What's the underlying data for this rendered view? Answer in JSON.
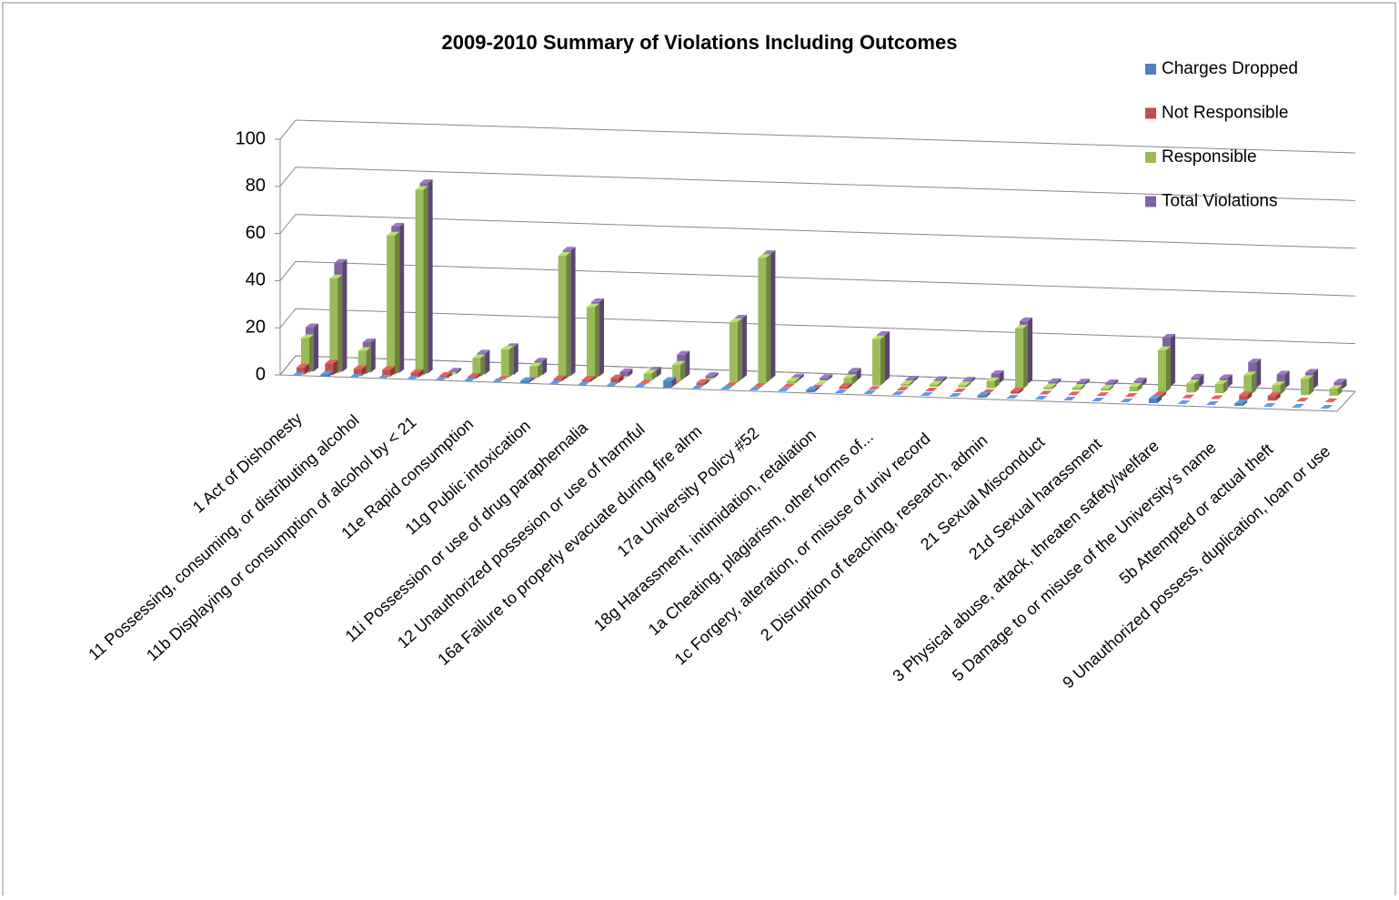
{
  "chart_data": {
    "type": "bar3d",
    "title": "2009-2010 Summary of Violations Including Outcomes",
    "categories": [
      "1  Act of Dishonesty",
      null,
      "11  Possessing, consuming, or distributing alcohol",
      null,
      "11b  Displaying or consumption of alcohol by < 21",
      null,
      "11e  Rapid consumption",
      null,
      "11g  Public intoxication",
      null,
      "11i  Possession or use of drug paraphernalia",
      null,
      "12  Unauthorized possesion or use of harmful",
      null,
      "16a  Failure to properly evacuate during fire alrm",
      null,
      "17a  University Policy #52",
      null,
      "18g  Harassment, intimidation, retaliation",
      null,
      "1a  Cheating, plagiarism, other forms of...",
      null,
      "1c  Forgery, alteration, or misuse of univ record",
      null,
      "2  Disruption of teaching, research, admin",
      null,
      "21  Sexual Misconduct",
      null,
      "21d  Sexual harassment",
      null,
      "3  Physical abuse, attack, threaten safety/welfare",
      null,
      "5  Damage to or misuse of the University's name",
      null,
      "5b  Attempted or actual theft",
      null,
      "9  Unauthorized possess, duplication, loan or use"
    ],
    "series": [
      {
        "name": "Charges Dropped",
        "color": "#4f81bd",
        "values": [
          0,
          1,
          0,
          0,
          0,
          0,
          0,
          0,
          1,
          0,
          0,
          0,
          0,
          3,
          0,
          0,
          0,
          0,
          1,
          0,
          0,
          0,
          0,
          0,
          1,
          0,
          0,
          0,
          0,
          0,
          2,
          0,
          0,
          1,
          0,
          0,
          0
        ]
      },
      {
        "name": "Not Responsible",
        "color": "#c0504d",
        "values": [
          3,
          5,
          3,
          3,
          2,
          1,
          1,
          0,
          0,
          1,
          1,
          2,
          0,
          0,
          1,
          0,
          0,
          0,
          0,
          1,
          0,
          0,
          0,
          0,
          0,
          1,
          0,
          0,
          0,
          0,
          1,
          0,
          0,
          2,
          2,
          0,
          0
        ]
      },
      {
        "name": "Responsible",
        "color": "#9bbb59",
        "values": [
          15,
          41,
          10,
          60,
          80,
          0,
          8,
          12,
          5,
          53,
          31,
          0,
          3,
          7,
          0,
          26,
          54,
          1,
          0,
          3,
          20,
          1,
          1,
          1,
          3,
          26,
          1,
          1,
          1,
          2,
          18,
          4,
          4,
          8,
          4,
          7,
          3
        ]
      },
      {
        "name": "Total Violations",
        "color": "#8064a2",
        "values": [
          19,
          47,
          13,
          63,
          82,
          1,
          9,
          12,
          6,
          54,
          32,
          2,
          3,
          10,
          1,
          26,
          54,
          1,
          1,
          4,
          20,
          1,
          1,
          1,
          4,
          27,
          1,
          1,
          1,
          2,
          21,
          4,
          4,
          11,
          6,
          7,
          3
        ]
      }
    ],
    "ylim": [
      0,
      100
    ],
    "yticks": [
      0,
      20,
      40,
      60,
      80,
      100
    ],
    "grid": true,
    "legend": "top-right"
  }
}
